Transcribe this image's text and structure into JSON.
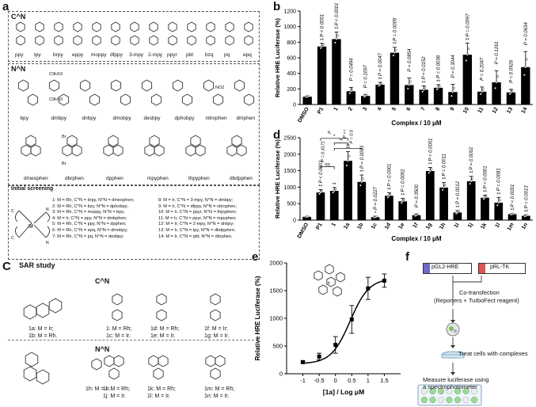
{
  "panels": {
    "a": "a",
    "b": "b",
    "c": "C",
    "d": "d",
    "e": "e",
    "f": "f"
  },
  "panel_a": {
    "cn_title": "C^N",
    "cn_ligands": [
      "ppy",
      "tpy",
      "brpy",
      "eppy",
      "moppy",
      "dfppy",
      "3-mpy",
      "2-mpy",
      "ppyr",
      "pbt",
      "bzq",
      "pq",
      "epq"
    ],
    "nn_title": "N^N",
    "nn_ligands_row1": [
      "bpy",
      "dmbpy",
      "dnbpy",
      "dmobpy",
      "desbpy",
      "dphobpy",
      "nitrophen",
      "dmphen"
    ],
    "nn_ligands_row2": [
      "dmeophen",
      "dbrphen",
      "dpphen",
      "mpyphen",
      "thpyphen",
      "dbdpphen"
    ],
    "sub_labels": {
      "c9h19": "C9H19",
      "no2": "NO2",
      "br": "Br"
    },
    "screen_title": "Initial screening",
    "legend_left": [
      "1: M = Rh, C^N = brpy, N^N = dmeophen;",
      "2: M = Rh, C^N = bzy, N^N = dphobpy;",
      "3: M = Rh, C^N = moppy, N^N = bpy;",
      "4: M = Ir, C^N = ppy, N^N = dmbphen;",
      "5: M = Rh, C^N = ppy, N^N = dpphen;",
      "6: M = Rh, C^N = epq, N^N = dmobpy;",
      "7: M = Rh, C^N = pq, N^N = desbpy;"
    ],
    "legend_right": [
      "8: M = Ir, C^N = 3-mpy, N^N = dmbpy;",
      "9: M = Ir, C^N = dfppy, N^N = nitrophen;",
      "10: M = Ir, C^N = ppyr, N^N = thpyphen;",
      "11: M = Ir, C^N = ppyr, N^N = mpyphen;",
      "12: M = Ir, C^N = 2-mpy, N^N = dnbpy;",
      "13: M = Ir, C^N = tpy, N^N = dbdpphen;",
      "14: M = Ir, C^N = pbt, N^N = dbrphen."
    ]
  },
  "panel_c": {
    "title": "SAR study",
    "cn_title": "C^N",
    "nn_title": "N^N",
    "cn_labels": [
      [
        "1a: M = Ir;",
        "1b: M = Rh."
      ],
      [
        "1: M = Rh;",
        "1c: M = Ir."
      ],
      [
        "1d: M = Rh;",
        "1e: M = Ir."
      ],
      [
        "1f: M = Ir;",
        "1g: M = Ir."
      ]
    ],
    "nn_labels": [
      [
        "1h: M = Ir."
      ],
      [
        "1i: M = Rh;",
        "1j: M = Ir."
      ],
      [
        "1k: M = Rh;",
        "1l: M = Ir."
      ],
      [
        "1m: M = Rh;",
        "1n: M = Ir."
      ]
    ]
  },
  "chart_data": [
    {
      "id": "b",
      "type": "bar",
      "ylabel": "Relative HRE Luciferase (%)",
      "xlabel": "Complex / 10 μM",
      "ylim": [
        0,
        1200
      ],
      "yticks": [
        0,
        200,
        400,
        600,
        800,
        1000,
        1200
      ],
      "categories": [
        "DMSO",
        "P1",
        "1",
        "2",
        "3",
        "4",
        "5",
        "6",
        "7",
        "8",
        "9",
        "10",
        "11",
        "12",
        "13",
        "14"
      ],
      "values": [
        100,
        745,
        840,
        170,
        110,
        255,
        665,
        250,
        190,
        215,
        160,
        640,
        165,
        285,
        155,
        480
      ],
      "errors": [
        10,
        40,
        90,
        50,
        20,
        30,
        70,
        90,
        50,
        40,
        100,
        150,
        60,
        150,
        40,
        200
      ],
      "stars": [
        "",
        "**",
        "**",
        "",
        "",
        "**",
        "**",
        "",
        "**",
        "**",
        "",
        "**",
        "",
        "",
        "",
        ""
      ],
      "pvalues": [
        "",
        "P < 0.0001",
        "P < 0.0001",
        "P = 0.0494",
        "P = 0.1097",
        "P = 0.0047",
        "P = 0.0009",
        "P = 0.0854",
        "P = 0.0152",
        "P = 0.0038",
        "P = 0.3044",
        "P = 0.0097",
        "P = 0.2047",
        "P = 0.1261",
        "P = 0.0926",
        "P = 0.0634"
      ]
    },
    {
      "id": "d",
      "type": "bar",
      "ylabel": "Relative HRE Luciferase (%)",
      "xlabel": "Complex / 10 μM",
      "ylim": [
        0,
        2500
      ],
      "yticks": [
        0,
        500,
        1000,
        1500,
        2000,
        2500
      ],
      "categories": [
        "DMSO",
        "P1",
        "1",
        "1a",
        "1b",
        "1c",
        "1d",
        "1e",
        "1f",
        "1g",
        "1h",
        "1i",
        "1j",
        "1k",
        "1l",
        "1m",
        "1n"
      ],
      "values": [
        100,
        840,
        890,
        1800,
        1160,
        90,
        740,
        570,
        150,
        1490,
        990,
        230,
        1180,
        680,
        530,
        180,
        130
      ],
      "errors": [
        10,
        90,
        100,
        280,
        210,
        30,
        90,
        90,
        40,
        110,
        150,
        60,
        150,
        80,
        160,
        20,
        30
      ],
      "stars": [
        "",
        "**",
        "**",
        "**",
        "**",
        "*",
        "**",
        "**",
        "",
        "**",
        "**",
        "**",
        "**",
        "**",
        "**",
        "**",
        "**"
      ],
      "pvalues": [
        "",
        "P < 0.0001",
        "",
        "",
        "P = 0.0033",
        "P = 0.0227",
        "P = 0.0001",
        "P = 0.0002",
        "P = 0.3500",
        "P < 0.0001",
        "P = 0.0011",
        "P = 0.0012",
        "P = 0.0002",
        "P < 0.0001",
        "P = 0.0081",
        "P < 0.0001",
        "P = 0.0013"
      ],
      "bracket_pvalues": [
        "P = 0.0127",
        "P = 0.0016",
        "P = 0.4171",
        "P = 0.0003"
      ],
      "bracket_stars": [
        "*",
        "**",
        "ns",
        "**"
      ]
    },
    {
      "id": "e",
      "type": "line",
      "ylabel": "Relative HRE Luciferase (%)",
      "xlabel": "[1a] / Log μM",
      "xlim": [
        -1.5,
        2.0
      ],
      "ylim": [
        0,
        2000
      ],
      "xticks": [
        -1,
        -0.5,
        0,
        0.5,
        1,
        1.5
      ],
      "yticks": [
        0,
        500,
        1000,
        1500,
        2000
      ],
      "x": [
        -1,
        -0.5,
        0,
        0.5,
        1,
        1.5
      ],
      "y": [
        210,
        310,
        520,
        980,
        1540,
        1680
      ],
      "errors": [
        20,
        60,
        150,
        250,
        200,
        120
      ]
    }
  ],
  "panel_f": {
    "plasmid1": "pGL2-HRE",
    "plasmid2": "pRL-TK",
    "step1": "Co-transfection",
    "step1b": "(Reporters + TurboFect reagent)",
    "step2": "Treat cells with complexes",
    "step3": "Measure luciferase using",
    "step3b": "a spectrophotometer"
  }
}
